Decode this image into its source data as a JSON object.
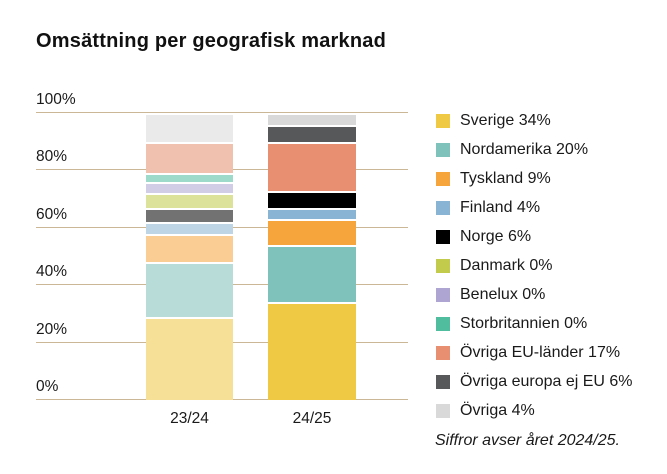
{
  "title": "Omsättning per geografisk marknad",
  "footnote": "Siffror avser året 2024/25.",
  "chart_data": {
    "type": "bar",
    "stacked": true,
    "title": "Omsättning per geografisk marknad",
    "categories": [
      "23/24",
      "24/25"
    ],
    "series": [
      {
        "name": "Sverige",
        "legend_label": "Sverige 34%",
        "color": "#EFC844",
        "values": [
          29,
          34
        ]
      },
      {
        "name": "Nordamerika",
        "legend_label": "Nordamerika 20%",
        "color": "#7FC2BB",
        "values": [
          19,
          20
        ]
      },
      {
        "name": "Tyskland",
        "legend_label": "Tyskland 9%",
        "color": "#F5A53C",
        "values": [
          10,
          9
        ]
      },
      {
        "name": "Finland",
        "legend_label": "Finland 4%",
        "color": "#89B4D3",
        "values": [
          4,
          4
        ]
      },
      {
        "name": "Norge",
        "legend_label": "Norge 6%",
        "color": "#000000",
        "values": [
          5,
          6
        ]
      },
      {
        "name": "Danmark",
        "legend_label": "Danmark 0%",
        "color": "#C2CB4B",
        "values": [
          5,
          0
        ]
      },
      {
        "name": "Benelux",
        "legend_label": "Benelux 0%",
        "color": "#AFA5D2",
        "values": [
          4,
          0
        ]
      },
      {
        "name": "Storbritannien",
        "legend_label": "Storbritannien 0%",
        "color": "#50BD9F",
        "values": [
          3,
          0
        ]
      },
      {
        "name": "Övriga EU-länder",
        "legend_label": "Övriga EU-länder 17%",
        "color": "#E78F70",
        "values": [
          11,
          17
        ]
      },
      {
        "name": "Övriga europa ej EU",
        "legend_label": "Övriga europa ej EU 6%",
        "color": "#57585A",
        "values": [
          0,
          6
        ]
      },
      {
        "name": "Övriga",
        "legend_label": "Övriga 4%",
        "color": "#D9D9D9",
        "values": [
          10,
          4
        ]
      }
    ],
    "ylim": [
      0,
      100
    ],
    "ytick_values": [
      0,
      20,
      40,
      60,
      80,
      100
    ],
    "ytick_labels": [
      "0%",
      "20%",
      "40%",
      "60%",
      "80%",
      "100%"
    ],
    "grid": true,
    "gridline_color": "#CBB795",
    "legend_position": "right",
    "prior_year_bar_muted": true
  }
}
